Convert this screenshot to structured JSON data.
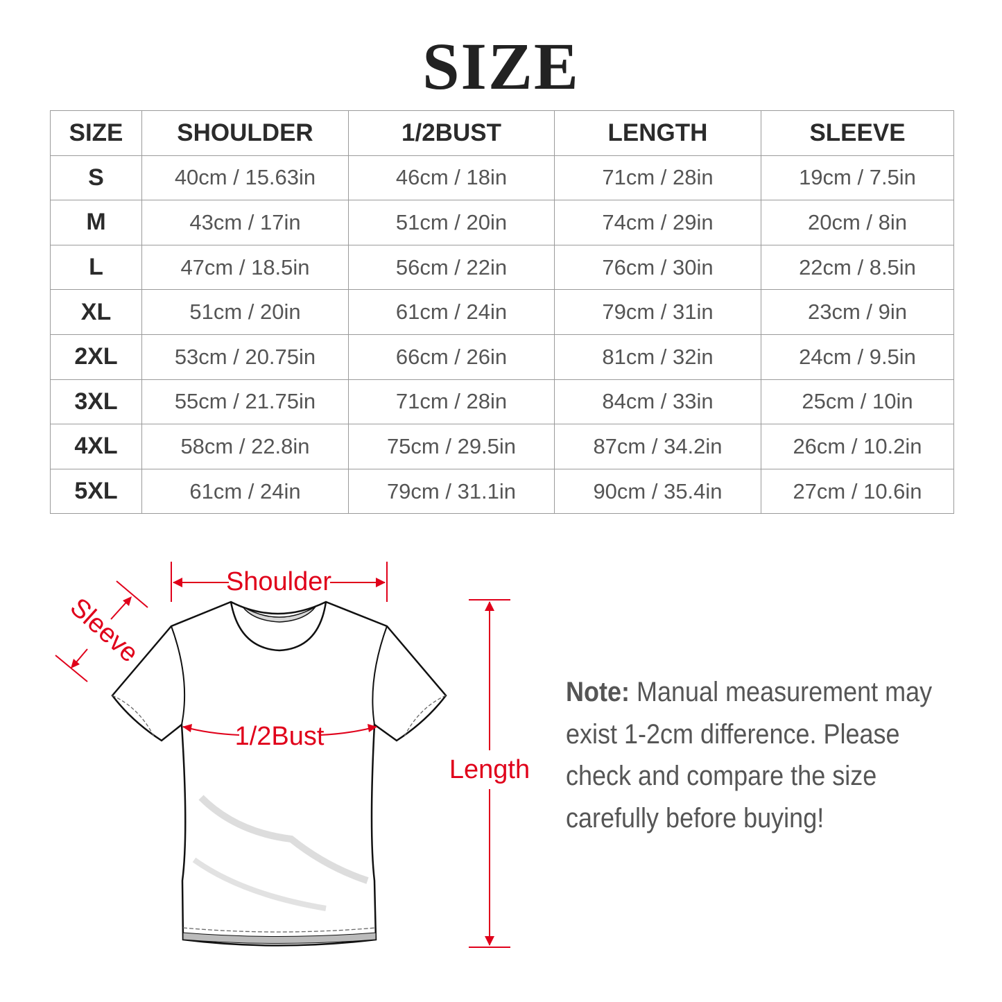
{
  "title": "SIZE",
  "table": {
    "headers": [
      "SIZE",
      "SHOULDER",
      "1/2BUST",
      "LENGTH",
      "SLEEVE"
    ],
    "rows": [
      [
        "S",
        "40cm / 15.63in",
        "46cm / 18in",
        "71cm / 28in",
        "19cm / 7.5in"
      ],
      [
        "M",
        "43cm / 17in",
        "51cm / 20in",
        "74cm / 29in",
        "20cm / 8in"
      ],
      [
        "L",
        "47cm / 18.5in",
        "56cm / 22in",
        "76cm / 30in",
        "22cm / 8.5in"
      ],
      [
        "XL",
        "51cm / 20in",
        "61cm / 24in",
        "79cm / 31in",
        "23cm / 9in"
      ],
      [
        "2XL",
        "53cm / 20.75in",
        "66cm / 26in",
        "81cm / 32in",
        "24cm / 9.5in"
      ],
      [
        "3XL",
        "55cm / 21.75in",
        "71cm / 28in",
        "84cm / 33in",
        "25cm / 10in"
      ],
      [
        "4XL",
        "58cm / 22.8in",
        "75cm / 29.5in",
        "87cm / 34.2in",
        "26cm / 10.2in"
      ],
      [
        "5XL",
        "61cm / 24in",
        "79cm / 31.1in",
        "90cm / 35.4in",
        "27cm / 10.6in"
      ]
    ]
  },
  "diagram": {
    "shoulder_label": "Shoulder",
    "sleeve_label": "Sleeve",
    "bust_label": "1/2Bust",
    "length_label": "Length",
    "label_color": "#e0001a"
  },
  "note": {
    "label": "Note:",
    "text": " Manual measurement may exist 1-2cm difference. Please check and compare the size carefully before buying!"
  }
}
